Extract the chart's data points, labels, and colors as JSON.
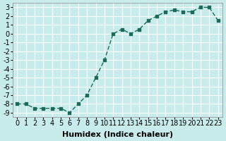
{
  "x": [
    0,
    1,
    2,
    3,
    4,
    5,
    6,
    7,
    8,
    9,
    10,
    11,
    12,
    13,
    14,
    15,
    16,
    17,
    18,
    19,
    20,
    21,
    22,
    23
  ],
  "y": [
    -8,
    -8,
    -8.5,
    -8.5,
    -8.5,
    -8.5,
    -9,
    -8,
    -7,
    -5,
    -3,
    0,
    0.5,
    0,
    0.5,
    1.5,
    2,
    2.5,
    2.7,
    2.5,
    2.5,
    3,
    3,
    1.5
  ],
  "line_color": "#1a6b5a",
  "marker_color": "#1a6b5a",
  "bg_color": "#c8ecec",
  "grid_color": "#ffffff",
  "xlabel": "Humidex (Indice chaleur)",
  "ylim": [
    -9.5,
    3.5
  ],
  "xlim": [
    -0.5,
    23.5
  ],
  "yticks": [
    -9,
    -8,
    -7,
    -6,
    -5,
    -4,
    -3,
    -2,
    -1,
    0,
    1,
    2,
    3
  ],
  "xticks": [
    0,
    1,
    2,
    3,
    4,
    5,
    6,
    7,
    8,
    9,
    10,
    11,
    12,
    13,
    14,
    15,
    16,
    17,
    18,
    19,
    20,
    21,
    22,
    23
  ],
  "xlabel_fontsize": 8,
  "tick_fontsize": 7
}
